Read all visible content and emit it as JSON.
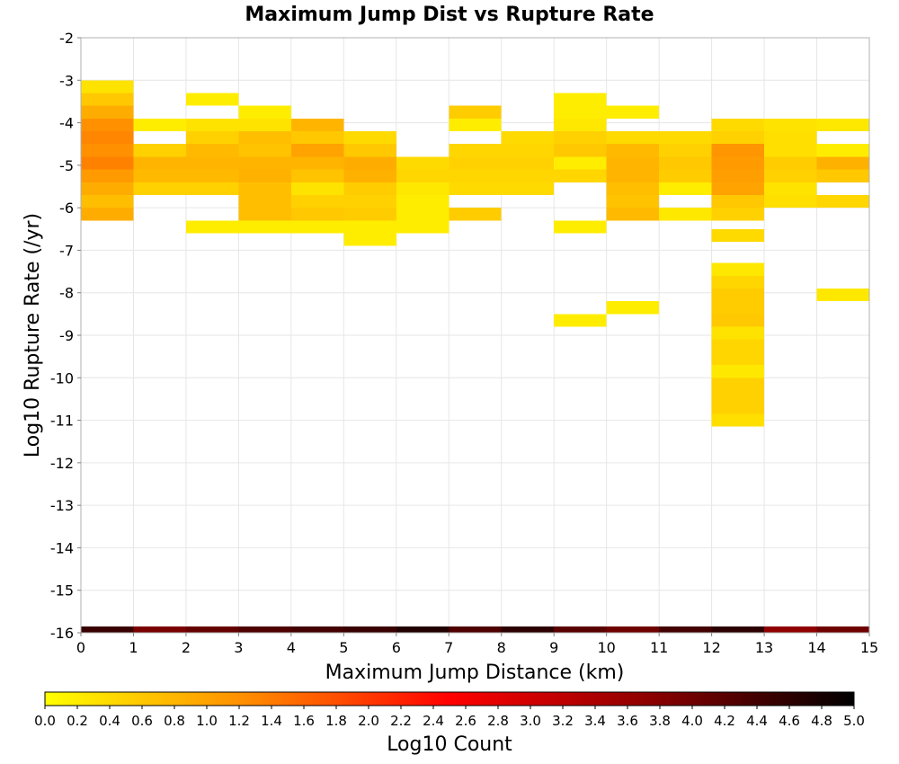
{
  "chart_data": {
    "type": "heatmap",
    "title": "Maximum Jump Dist vs Rupture Rate",
    "xlabel": "Maximum Jump Distance (km)",
    "ylabel": "Log10 Rupture Rate (/yr)",
    "xlim": [
      0,
      15
    ],
    "ylim": [
      -16,
      -2
    ],
    "x_ticks": [
      "0",
      "1",
      "2",
      "3",
      "4",
      "5",
      "6",
      "7",
      "8",
      "9",
      "10",
      "11",
      "12",
      "13",
      "14",
      "15"
    ],
    "y_ticks": [
      "-2",
      "-3",
      "-4",
      "-5",
      "-6",
      "-7",
      "-8",
      "-9",
      "-10",
      "-11",
      "-12",
      "-13",
      "-14",
      "-15",
      "-16"
    ],
    "grid": true,
    "colorbar": {
      "label": "Log10 Count",
      "range": [
        0.0,
        5.0
      ],
      "ticks": [
        "0.0",
        "0.2",
        "0.4",
        "0.6",
        "0.8",
        "1.0",
        "1.2",
        "1.4",
        "1.6",
        "1.8",
        "2.0",
        "2.2",
        "2.4",
        "2.6",
        "2.8",
        "3.0",
        "3.2",
        "3.4",
        "3.6",
        "3.8",
        "4.0",
        "4.2",
        "4.4",
        "4.6",
        "4.8",
        "5.0"
      ],
      "colors": [
        "#ffff00",
        "#ff8c00",
        "#ff0000",
        "#8b0000",
        "#000000"
      ]
    },
    "x_bin_width": 1,
    "y_bin_height": 0.3,
    "cells": [
      {
        "x": 0,
        "y": -3.15,
        "v": 0.3
      },
      {
        "x": 0,
        "y": -3.45,
        "v": 0.6
      },
      {
        "x": 0,
        "y": -3.75,
        "v": 0.9
      },
      {
        "x": 0,
        "y": -4.05,
        "v": 1.2
      },
      {
        "x": 0,
        "y": -4.35,
        "v": 1.3
      },
      {
        "x": 0,
        "y": -4.65,
        "v": 1.2
      },
      {
        "x": 0,
        "y": -4.95,
        "v": 1.35
      },
      {
        "x": 0,
        "y": -5.25,
        "v": 1.1
      },
      {
        "x": 0,
        "y": -5.55,
        "v": 0.9
      },
      {
        "x": 0,
        "y": -5.85,
        "v": 0.7
      },
      {
        "x": 0,
        "y": -6.15,
        "v": 0.9
      },
      {
        "x": 1,
        "y": -4.05,
        "v": 0.2
      },
      {
        "x": 1,
        "y": -4.65,
        "v": 0.5
      },
      {
        "x": 1,
        "y": -4.95,
        "v": 0.8
      },
      {
        "x": 1,
        "y": -5.25,
        "v": 0.75
      },
      {
        "x": 1,
        "y": -5.55,
        "v": 0.5
      },
      {
        "x": 2,
        "y": -3.45,
        "v": 0.2
      },
      {
        "x": 2,
        "y": -4.05,
        "v": 0.3
      },
      {
        "x": 2,
        "y": -4.35,
        "v": 0.5
      },
      {
        "x": 2,
        "y": -4.65,
        "v": 0.75
      },
      {
        "x": 2,
        "y": -4.95,
        "v": 0.8
      },
      {
        "x": 2,
        "y": -5.25,
        "v": 0.75
      },
      {
        "x": 2,
        "y": -5.55,
        "v": 0.5
      },
      {
        "x": 2,
        "y": -6.45,
        "v": 0.2
      },
      {
        "x": 3,
        "y": -3.75,
        "v": 0.2
      },
      {
        "x": 3,
        "y": -4.05,
        "v": 0.3
      },
      {
        "x": 3,
        "y": -4.35,
        "v": 0.7
      },
      {
        "x": 3,
        "y": -4.65,
        "v": 0.65
      },
      {
        "x": 3,
        "y": -4.95,
        "v": 0.8
      },
      {
        "x": 3,
        "y": -5.25,
        "v": 0.85
      },
      {
        "x": 3,
        "y": -5.55,
        "v": 0.7
      },
      {
        "x": 3,
        "y": -5.85,
        "v": 0.7
      },
      {
        "x": 3,
        "y": -6.15,
        "v": 0.7
      },
      {
        "x": 3,
        "y": -6.45,
        "v": 0.2
      },
      {
        "x": 4,
        "y": -4.05,
        "v": 0.8
      },
      {
        "x": 4,
        "y": -4.35,
        "v": 0.6
      },
      {
        "x": 4,
        "y": -4.65,
        "v": 1.0
      },
      {
        "x": 4,
        "y": -4.95,
        "v": 0.8
      },
      {
        "x": 4,
        "y": -5.25,
        "v": 0.65
      },
      {
        "x": 4,
        "y": -5.55,
        "v": 0.3
      },
      {
        "x": 4,
        "y": -5.85,
        "v": 0.5
      },
      {
        "x": 4,
        "y": -6.15,
        "v": 0.6
      },
      {
        "x": 4,
        "y": -6.45,
        "v": 0.2
      },
      {
        "x": 5,
        "y": -4.35,
        "v": 0.4
      },
      {
        "x": 5,
        "y": -4.65,
        "v": 0.6
      },
      {
        "x": 5,
        "y": -4.95,
        "v": 0.9
      },
      {
        "x": 5,
        "y": -5.25,
        "v": 0.85
      },
      {
        "x": 5,
        "y": -5.55,
        "v": 0.55
      },
      {
        "x": 5,
        "y": -5.85,
        "v": 0.5
      },
      {
        "x": 5,
        "y": -6.15,
        "v": 0.55
      },
      {
        "x": 5,
        "y": -6.45,
        "v": 0.2
      },
      {
        "x": 5,
        "y": -6.75,
        "v": 0.2
      },
      {
        "x": 6,
        "y": -4.95,
        "v": 0.4
      },
      {
        "x": 6,
        "y": -5.25,
        "v": 0.45
      },
      {
        "x": 6,
        "y": -5.55,
        "v": 0.25
      },
      {
        "x": 6,
        "y": -5.85,
        "v": 0.2
      },
      {
        "x": 6,
        "y": -6.15,
        "v": 0.2
      },
      {
        "x": 6,
        "y": -6.45,
        "v": 0.2
      },
      {
        "x": 7,
        "y": -3.75,
        "v": 0.55
      },
      {
        "x": 7,
        "y": -4.05,
        "v": 0.2
      },
      {
        "x": 7,
        "y": -4.65,
        "v": 0.45
      },
      {
        "x": 7,
        "y": -4.95,
        "v": 0.5
      },
      {
        "x": 7,
        "y": -5.25,
        "v": 0.45
      },
      {
        "x": 7,
        "y": -5.55,
        "v": 0.4
      },
      {
        "x": 7,
        "y": -6.15,
        "v": 0.55
      },
      {
        "x": 8,
        "y": -4.35,
        "v": 0.4
      },
      {
        "x": 8,
        "y": -4.65,
        "v": 0.45
      },
      {
        "x": 8,
        "y": -4.95,
        "v": 0.5
      },
      {
        "x": 8,
        "y": -5.25,
        "v": 0.45
      },
      {
        "x": 8,
        "y": -5.55,
        "v": 0.4
      },
      {
        "x": 9,
        "y": -3.45,
        "v": 0.2
      },
      {
        "x": 9,
        "y": -3.75,
        "v": 0.2
      },
      {
        "x": 9,
        "y": -4.05,
        "v": 0.25
      },
      {
        "x": 9,
        "y": -4.35,
        "v": 0.5
      },
      {
        "x": 9,
        "y": -4.65,
        "v": 0.6
      },
      {
        "x": 9,
        "y": -4.95,
        "v": 0.2
      },
      {
        "x": 9,
        "y": -5.25,
        "v": 0.45
      },
      {
        "x": 9,
        "y": -6.45,
        "v": 0.2
      },
      {
        "x": 9,
        "y": -8.65,
        "v": 0.2
      },
      {
        "x": 10,
        "y": -3.75,
        "v": 0.2
      },
      {
        "x": 10,
        "y": -4.35,
        "v": 0.4
      },
      {
        "x": 10,
        "y": -4.65,
        "v": 0.75
      },
      {
        "x": 10,
        "y": -4.95,
        "v": 0.8
      },
      {
        "x": 10,
        "y": -5.25,
        "v": 0.8
      },
      {
        "x": 10,
        "y": -5.55,
        "v": 0.7
      },
      {
        "x": 10,
        "y": -5.85,
        "v": 0.65
      },
      {
        "x": 10,
        "y": -6.15,
        "v": 0.75
      },
      {
        "x": 10,
        "y": -8.35,
        "v": 0.2
      },
      {
        "x": 11,
        "y": -4.35,
        "v": 0.4
      },
      {
        "x": 11,
        "y": -4.65,
        "v": 0.5
      },
      {
        "x": 11,
        "y": -4.95,
        "v": 0.6
      },
      {
        "x": 11,
        "y": -5.25,
        "v": 0.55
      },
      {
        "x": 11,
        "y": -5.55,
        "v": 0.2
      },
      {
        "x": 11,
        "y": -6.15,
        "v": 0.25
      },
      {
        "x": 12,
        "y": -4.05,
        "v": 0.4
      },
      {
        "x": 12,
        "y": -4.35,
        "v": 0.5
      },
      {
        "x": 12,
        "y": -4.65,
        "v": 1.15
      },
      {
        "x": 12,
        "y": -4.95,
        "v": 1.1
      },
      {
        "x": 12,
        "y": -5.25,
        "v": 1.05
      },
      {
        "x": 12,
        "y": -5.55,
        "v": 1.0
      },
      {
        "x": 12,
        "y": -5.85,
        "v": 0.6
      },
      {
        "x": 12,
        "y": -6.15,
        "v": 0.5
      },
      {
        "x": 12,
        "y": -6.65,
        "v": 0.4
      },
      {
        "x": 12,
        "y": -7.45,
        "v": 0.25
      },
      {
        "x": 12,
        "y": -7.75,
        "v": 0.45
      },
      {
        "x": 12,
        "y": -8.05,
        "v": 0.55
      },
      {
        "x": 12,
        "y": -8.35,
        "v": 0.55
      },
      {
        "x": 12,
        "y": -8.65,
        "v": 0.6
      },
      {
        "x": 12,
        "y": -8.95,
        "v": 0.3
      },
      {
        "x": 12,
        "y": -9.25,
        "v": 0.45
      },
      {
        "x": 12,
        "y": -9.55,
        "v": 0.45
      },
      {
        "x": 12,
        "y": -9.85,
        "v": 0.25
      },
      {
        "x": 12,
        "y": -10.15,
        "v": 0.5
      },
      {
        "x": 12,
        "y": -10.45,
        "v": 0.5
      },
      {
        "x": 12,
        "y": -10.75,
        "v": 0.5
      },
      {
        "x": 12,
        "y": -11.0,
        "v": 0.35
      },
      {
        "x": 13,
        "y": -4.05,
        "v": 0.3
      },
      {
        "x": 13,
        "y": -4.35,
        "v": 0.35
      },
      {
        "x": 13,
        "y": -4.65,
        "v": 0.35
      },
      {
        "x": 13,
        "y": -4.95,
        "v": 0.55
      },
      {
        "x": 13,
        "y": -5.25,
        "v": 0.5
      },
      {
        "x": 13,
        "y": -5.55,
        "v": 0.3
      },
      {
        "x": 13,
        "y": -5.85,
        "v": 0.35
      },
      {
        "x": 14,
        "y": -4.05,
        "v": 0.25
      },
      {
        "x": 14,
        "y": -4.65,
        "v": 0.2
      },
      {
        "x": 14,
        "y": -4.95,
        "v": 0.85
      },
      {
        "x": 14,
        "y": -5.25,
        "v": 0.6
      },
      {
        "x": 14,
        "y": -5.85,
        "v": 0.45
      },
      {
        "x": 14,
        "y": -8.05,
        "v": 0.25
      }
    ],
    "bottom_row": {
      "y": -16,
      "values": [
        4.5,
        3.9,
        4.1,
        4.3,
        4.4,
        4.5,
        4.7,
        4.3,
        4.6,
        4.2,
        4.0,
        4.4,
        4.6,
        3.7,
        4.0
      ]
    }
  }
}
